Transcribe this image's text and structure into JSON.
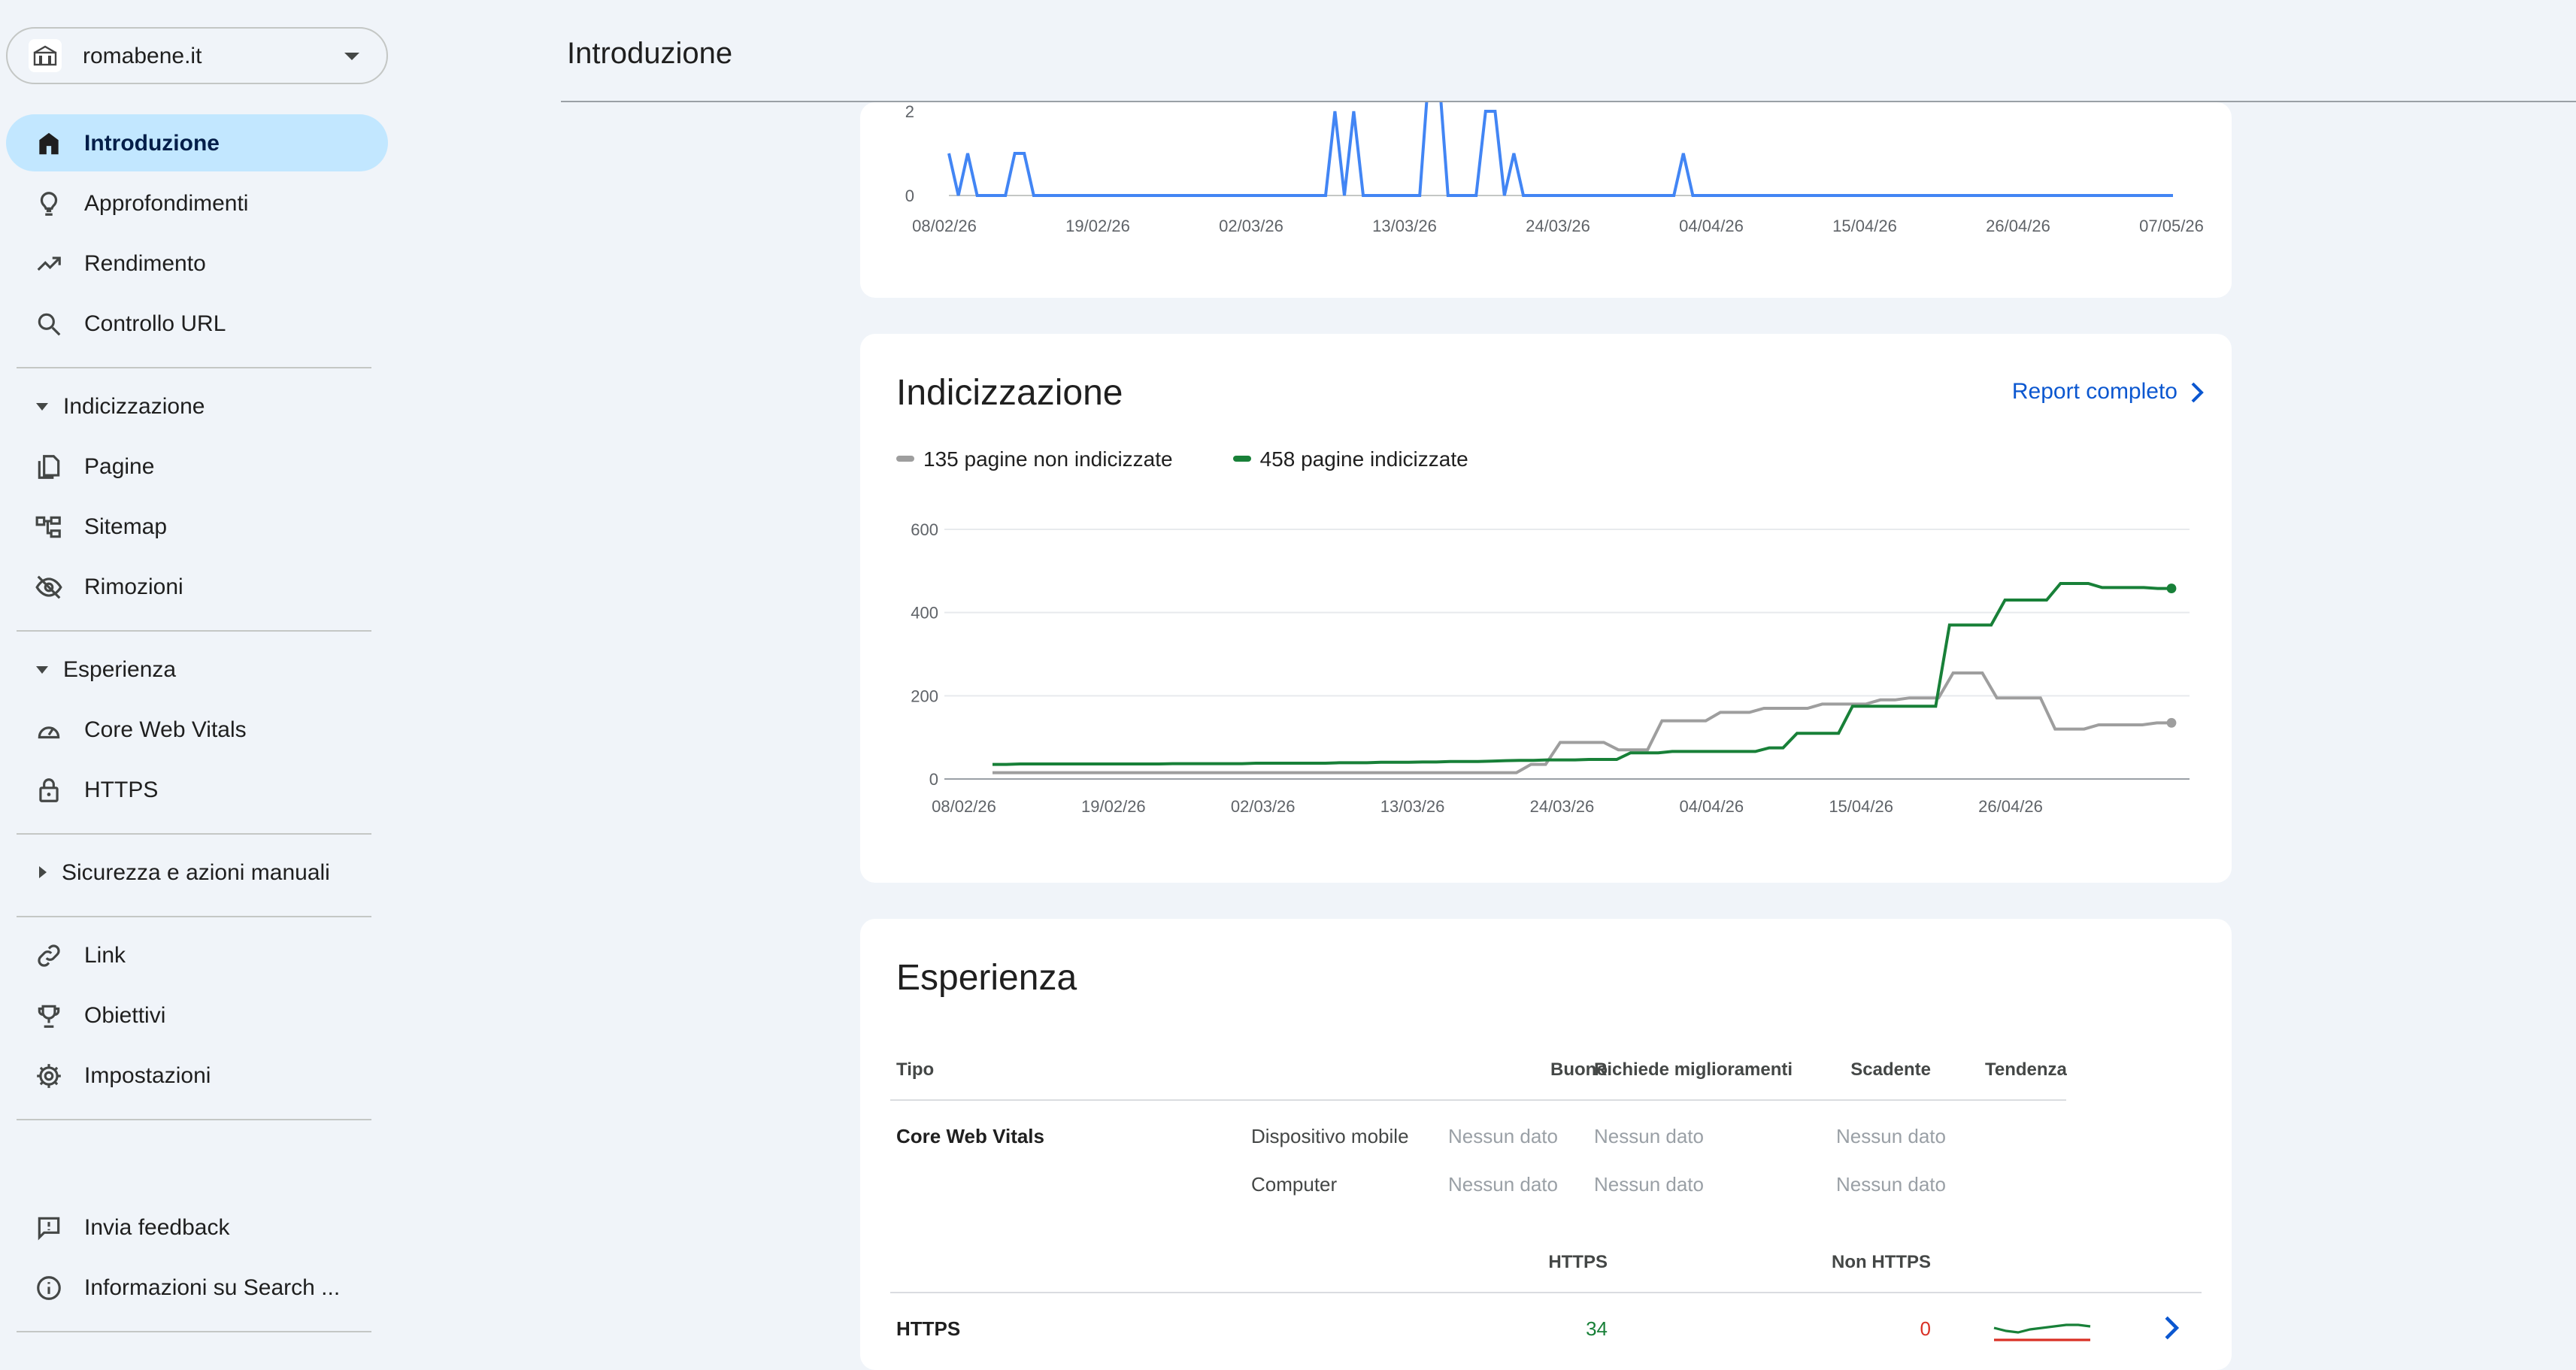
{
  "property": {
    "name": "romabene.it"
  },
  "header": {
    "title": "Introduzione"
  },
  "sidebar": {
    "top_items": [
      {
        "label": "Introduzione",
        "icon": "home-icon"
      },
      {
        "label": "Approfondimenti",
        "icon": "lightbulb-icon"
      },
      {
        "label": "Rendimento",
        "icon": "trending-up-icon"
      },
      {
        "label": "Controllo URL",
        "icon": "search-icon"
      }
    ],
    "sections": [
      {
        "label": "Indicizzazione",
        "items": [
          {
            "label": "Pagine",
            "icon": "pages-icon"
          },
          {
            "label": "Sitemap",
            "icon": "sitemap-icon"
          },
          {
            "label": "Rimozioni",
            "icon": "visibility-off-icon"
          }
        ]
      },
      {
        "label": "Esperienza",
        "items": [
          {
            "label": "Core Web Vitals",
            "icon": "speed-icon"
          },
          {
            "label": "HTTPS",
            "icon": "lock-icon"
          }
        ]
      },
      {
        "label": "Sicurezza e azioni manuali",
        "items": []
      }
    ],
    "bottom_items": [
      {
        "label": "Link",
        "icon": "link-icon"
      },
      {
        "label": "Obiettivi",
        "icon": "trophy-icon"
      },
      {
        "label": "Impostazioni",
        "icon": "gear-icon"
      }
    ],
    "footer_items": [
      {
        "label": "Invia feedback",
        "icon": "feedback-icon"
      },
      {
        "label": "Informazioni su Search ...",
        "icon": "info-icon"
      }
    ]
  },
  "top_chart": {
    "chart_data": {
      "type": "line",
      "x_ticks": [
        "08/02/26",
        "19/02/26",
        "02/03/26",
        "13/03/26",
        "24/03/26",
        "04/04/26",
        "15/04/26",
        "26/04/26",
        "07/05/26"
      ],
      "y_ticks": [
        "0",
        "2"
      ],
      "visible_ylim": [
        0,
        2
      ],
      "series": [
        {
          "color": "#4285f4",
          "values": [
            1,
            0,
            1,
            0,
            0,
            0,
            0,
            1,
            1,
            0,
            0,
            0,
            0,
            0,
            0,
            0,
            0,
            0,
            0,
            0,
            0,
            0,
            0,
            0,
            0,
            0,
            0,
            0,
            0,
            0,
            0,
            0,
            0,
            0,
            0,
            0,
            0,
            0,
            0,
            0,
            0,
            2,
            0,
            2,
            0,
            0,
            0,
            0,
            0,
            0,
            0,
            3,
            3,
            0,
            0,
            0,
            0,
            2,
            2,
            0,
            1,
            0,
            0,
            0,
            0,
            0,
            0,
            0,
            0,
            0,
            0,
            0,
            0,
            0,
            0,
            0,
            0,
            0,
            1,
            0,
            0,
            0,
            0,
            0,
            0,
            0,
            0,
            0,
            0,
            0,
            0,
            0,
            0,
            0,
            0,
            0,
            0,
            0,
            0,
            0,
            0,
            0,
            0,
            0,
            0,
            0,
            0,
            0,
            0,
            0,
            0,
            0,
            0,
            0,
            0,
            0,
            0,
            0,
            0,
            0,
            0,
            0,
            0,
            0,
            0,
            0,
            0,
            0,
            0,
            0,
            0
          ]
        }
      ]
    }
  },
  "indexing": {
    "title": "Indicizzazione",
    "report_link": "Report completo",
    "legend": [
      {
        "label": "135 pagine non indicizzate",
        "color": "#9e9e9e"
      },
      {
        "label": "458 pagine indicizzate",
        "color": "#188038"
      }
    ],
    "chart_data": {
      "type": "line",
      "x_ticks": [
        "08/02/26",
        "19/02/26",
        "02/03/26",
        "13/03/26",
        "24/03/26",
        "04/04/26",
        "15/04/26",
        "26/04/26"
      ],
      "y_ticks": [
        "0",
        "200",
        "400",
        "600"
      ],
      "ylim": [
        0,
        600
      ],
      "series": [
        {
          "name": "135 pagine non indicizzate",
          "color": "#9e9e9e",
          "values": [
            15,
            15,
            15,
            15,
            15,
            15,
            15,
            15,
            15,
            15,
            15,
            15,
            15,
            15,
            15,
            15,
            15,
            15,
            15,
            15,
            15,
            15,
            15,
            15,
            15,
            15,
            15,
            15,
            15,
            15,
            15,
            15,
            15,
            15,
            15,
            15,
            15,
            35,
            35,
            88,
            88,
            88,
            88,
            70,
            70,
            70,
            140,
            140,
            140,
            140,
            160,
            160,
            160,
            170,
            170,
            170,
            170,
            180,
            180,
            180,
            180,
            190,
            190,
            195,
            195,
            195,
            255,
            255,
            255,
            195,
            195,
            195,
            195,
            120,
            120,
            120,
            130,
            130,
            130,
            130,
            135,
            135
          ]
        },
        {
          "name": "458 pagine indicizzate",
          "color": "#188038",
          "values": [
            35,
            35,
            36,
            36,
            36,
            36,
            36,
            36,
            36,
            36,
            36,
            36,
            36,
            37,
            37,
            37,
            37,
            37,
            37,
            38,
            38,
            38,
            38,
            38,
            38,
            39,
            39,
            39,
            40,
            40,
            40,
            41,
            41,
            42,
            42,
            42,
            43,
            44,
            45,
            45,
            46,
            46,
            46,
            47,
            47,
            47,
            63,
            63,
            63,
            66,
            66,
            66,
            66,
            66,
            66,
            66,
            75,
            75,
            110,
            110,
            110,
            110,
            175,
            175,
            175,
            175,
            175,
            175,
            175,
            370,
            370,
            370,
            370,
            430,
            430,
            430,
            430,
            470,
            470,
            470,
            460,
            460,
            460,
            460,
            458,
            458
          ]
        }
      ]
    }
  },
  "experience": {
    "title": "Esperienza",
    "headers": {
      "type": "Tipo",
      "good": "Buono",
      "needs": "Richiede miglioramenti",
      "poor": "Scadente",
      "trend": "Tendenza"
    },
    "cwv": {
      "label": "Core Web Vitals",
      "rows": [
        {
          "device": "Dispositivo mobile",
          "good": "Nessun dato",
          "needs": "Nessun dato",
          "poor": "Nessun dato"
        },
        {
          "device": "Computer",
          "good": "Nessun dato",
          "needs": "Nessun dato",
          "poor": "Nessun dato"
        }
      ]
    },
    "https": {
      "label": "HTTPS",
      "col_https": "HTTPS",
      "col_non_https": "Non HTTPS",
      "https_count": "34",
      "non_https_count": "0",
      "good_color": "#188038",
      "bad_color": "#d93025"
    }
  }
}
